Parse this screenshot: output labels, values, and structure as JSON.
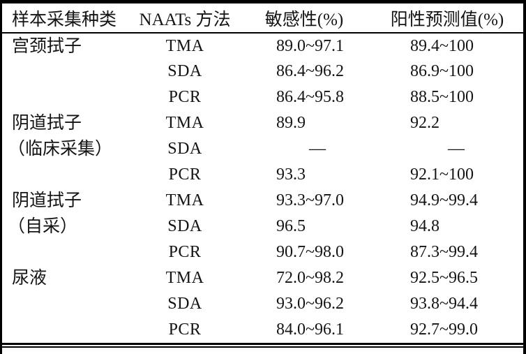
{
  "table": {
    "no_data_symbol": "—",
    "headers": [
      "样本采集种类",
      "NAATs 方法",
      "敏感性(%)",
      "阳性预测值(%)"
    ],
    "groups": [
      {
        "sample_type_lines": [
          "宫颈拭子"
        ],
        "rows": [
          {
            "method": "TMA",
            "sensitivity": "89.0~97.1",
            "ppv": "89.4~100"
          },
          {
            "method": "SDA",
            "sensitivity": "86.4~96.2",
            "ppv": "86.9~100"
          },
          {
            "method": "PCR",
            "sensitivity": "86.4~95.8",
            "ppv": "88.5~100"
          }
        ]
      },
      {
        "sample_type_lines": [
          "阴道拭子",
          "（临床采集）"
        ],
        "rows": [
          {
            "method": "TMA",
            "sensitivity": "89.9",
            "ppv": "92.2"
          },
          {
            "method": "SDA",
            "sensitivity": "—",
            "ppv": "—"
          },
          {
            "method": "PCR",
            "sensitivity": "93.3",
            "ppv": "92.1~100"
          }
        ]
      },
      {
        "sample_type_lines": [
          "阴道拭子",
          "（自采）"
        ],
        "rows": [
          {
            "method": "TMA",
            "sensitivity": "93.3~97.0",
            "ppv": "94.9~99.4"
          },
          {
            "method": "SDA",
            "sensitivity": "96.5",
            "ppv": "94.8"
          },
          {
            "method": "PCR",
            "sensitivity": "90.7~98.0",
            "ppv": "87.3~99.4"
          }
        ]
      },
      {
        "sample_type_lines": [
          "尿液"
        ],
        "rows": [
          {
            "method": "TMA",
            "sensitivity": "72.0~98.2",
            "ppv": "92.5~96.5"
          },
          {
            "method": "SDA",
            "sensitivity": "93.0~96.2",
            "ppv": "93.8~94.4"
          },
          {
            "method": "PCR",
            "sensitivity": "84.0~96.1",
            "ppv": "92.7~99.0"
          }
        ]
      }
    ]
  },
  "colors": {
    "rule": "#000000",
    "text": "#141414",
    "background": "#ffffff"
  }
}
